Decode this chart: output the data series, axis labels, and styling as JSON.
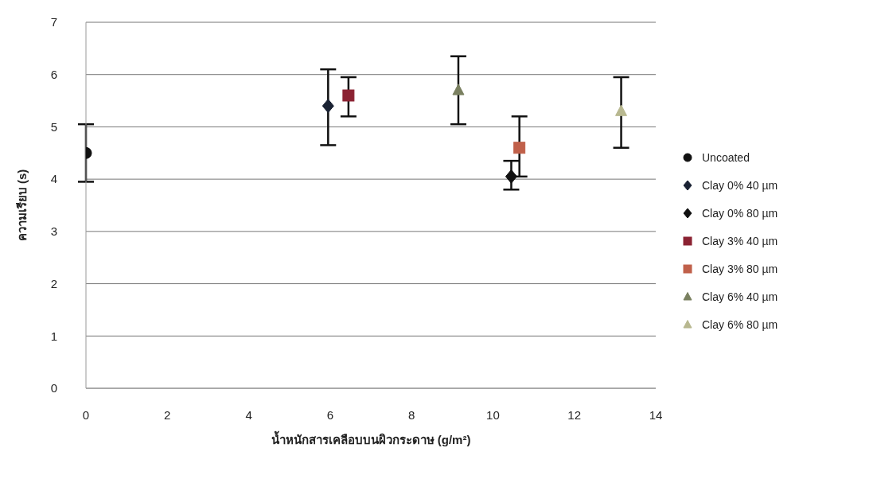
{
  "chart_data": {
    "type": "scatter",
    "xlabel": "น้ำหนักสารเคลือบบนผิวกระดาษ (g/m²)",
    "ylabel": "ความเรียบ (s)",
    "xlim": [
      0,
      14
    ],
    "xticks": [
      0,
      2,
      4,
      6,
      8,
      10,
      12,
      14
    ],
    "ylim": [
      0,
      7
    ],
    "yticks": [
      0,
      1,
      2,
      3,
      4,
      5,
      6,
      7
    ],
    "grid": "y",
    "legend": "right",
    "series": [
      {
        "name": "Uncoated",
        "color": "#111111",
        "marker": "circle",
        "x": [
          0
        ],
        "values": [
          4.5
        ],
        "errors": [
          [
            3.95,
            5.05
          ]
        ]
      },
      {
        "name": "Clay 0% 40 µm",
        "color": "#1a2233",
        "marker": "diamond",
        "x": [
          5.95
        ],
        "values": [
          5.4
        ],
        "errors": [
          [
            4.65,
            6.1
          ]
        ]
      },
      {
        "name": "Clay 0% 80 µm",
        "color": "#111111",
        "marker": "diamond",
        "x": [
          10.45
        ],
        "values": [
          4.05
        ],
        "errors": [
          [
            3.8,
            4.35
          ]
        ]
      },
      {
        "name": "Clay 3% 40 µm",
        "color": "#8b2232",
        "marker": "square",
        "x": [
          6.45
        ],
        "values": [
          5.6
        ],
        "errors": [
          [
            5.2,
            5.95
          ]
        ]
      },
      {
        "name": "Clay 3% 80 µm",
        "color": "#c0604a",
        "marker": "square",
        "x": [
          10.65
        ],
        "values": [
          4.6
        ],
        "errors": [
          [
            4.05,
            5.2
          ]
        ]
      },
      {
        "name": "Clay 6% 40 µm",
        "color": "#7a8060",
        "marker": "triangle",
        "x": [
          9.15
        ],
        "values": [
          5.7
        ],
        "errors": [
          [
            5.05,
            6.35
          ]
        ]
      },
      {
        "name": "Clay 6% 80 µm",
        "color": "#b8b890",
        "marker": "triangle",
        "x": [
          13.15
        ],
        "values": [
          5.3
        ],
        "errors": [
          [
            4.6,
            5.95
          ]
        ]
      }
    ]
  }
}
